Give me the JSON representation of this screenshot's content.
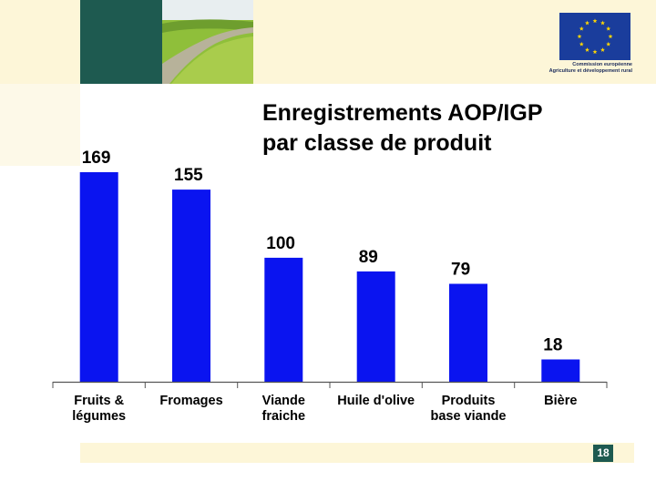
{
  "slide": {
    "title_line1": "Enregistrements AOP/IGP",
    "title_line2": "par classe de produit",
    "page_number": "18",
    "logo_text_line1": "Commission européenne",
    "logo_text_line2": "Agriculture et développement rural"
  },
  "colors": {
    "bar": "#0a14f0",
    "accent": "#1e5a50",
    "band": "#fdf6d8"
  },
  "chart_data": {
    "type": "bar",
    "title": "Enregistrements AOP/IGP par classe de produit",
    "categories": [
      [
        "Fruits &",
        "légumes"
      ],
      [
        "Fromages"
      ],
      [
        "Viande",
        "fraiche"
      ],
      [
        "Huile d'olive"
      ],
      [
        "Produits",
        "base viande"
      ],
      [
        "Bière"
      ]
    ],
    "values": [
      169,
      155,
      100,
      89,
      79,
      18
    ],
    "data_labels": [
      "169",
      "155",
      "100",
      "89",
      "79",
      "18"
    ],
    "ylim": [
      0,
      175
    ],
    "grid": false
  }
}
